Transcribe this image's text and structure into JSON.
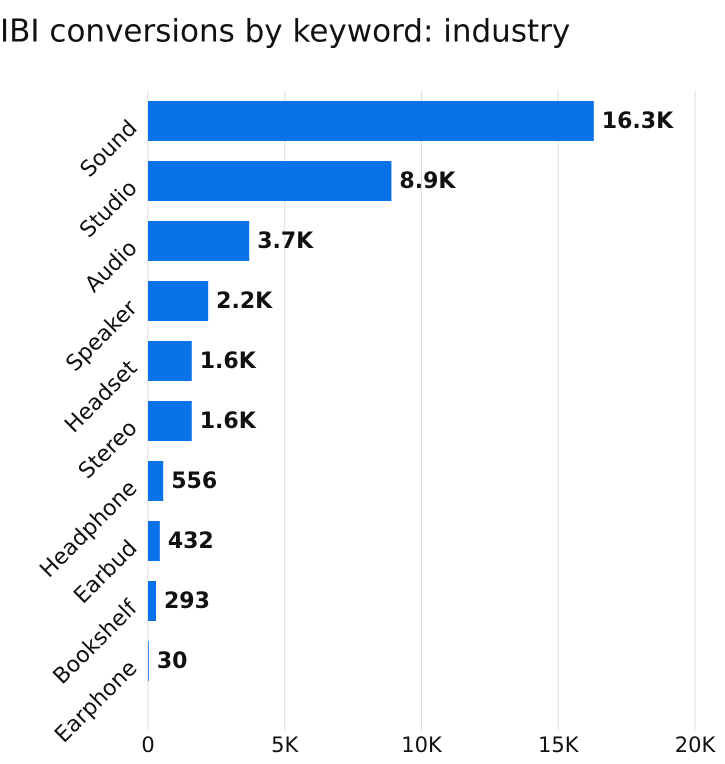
{
  "chart_data": {
    "type": "hbar",
    "title": "IBI conversions by keyword: industry",
    "categories": [
      "Sound",
      "Studio",
      "Audio",
      "Speaker",
      "Headset",
      "Stereo",
      "Headphone",
      "Earbud",
      "Bookshelf",
      "Earphone"
    ],
    "values": [
      16300,
      8900,
      3700,
      2200,
      1600,
      1600,
      556,
      432,
      293,
      30
    ],
    "value_labels": [
      "16.3K",
      "8.9K",
      "3.7K",
      "2.2K",
      "1.6K",
      "1.6K",
      "556",
      "432",
      "293",
      "30"
    ],
    "color": "#0a72e8",
    "xlim": [
      0,
      20000
    ],
    "xticks": [
      0,
      {
        "value": 5000,
        "label": "5K"
      },
      {
        "value": 10000,
        "label": "10K"
      },
      {
        "value": 15000,
        "label": "15K"
      },
      {
        "value": 20000,
        "label": "20K"
      }
    ],
    "grid": true
  }
}
